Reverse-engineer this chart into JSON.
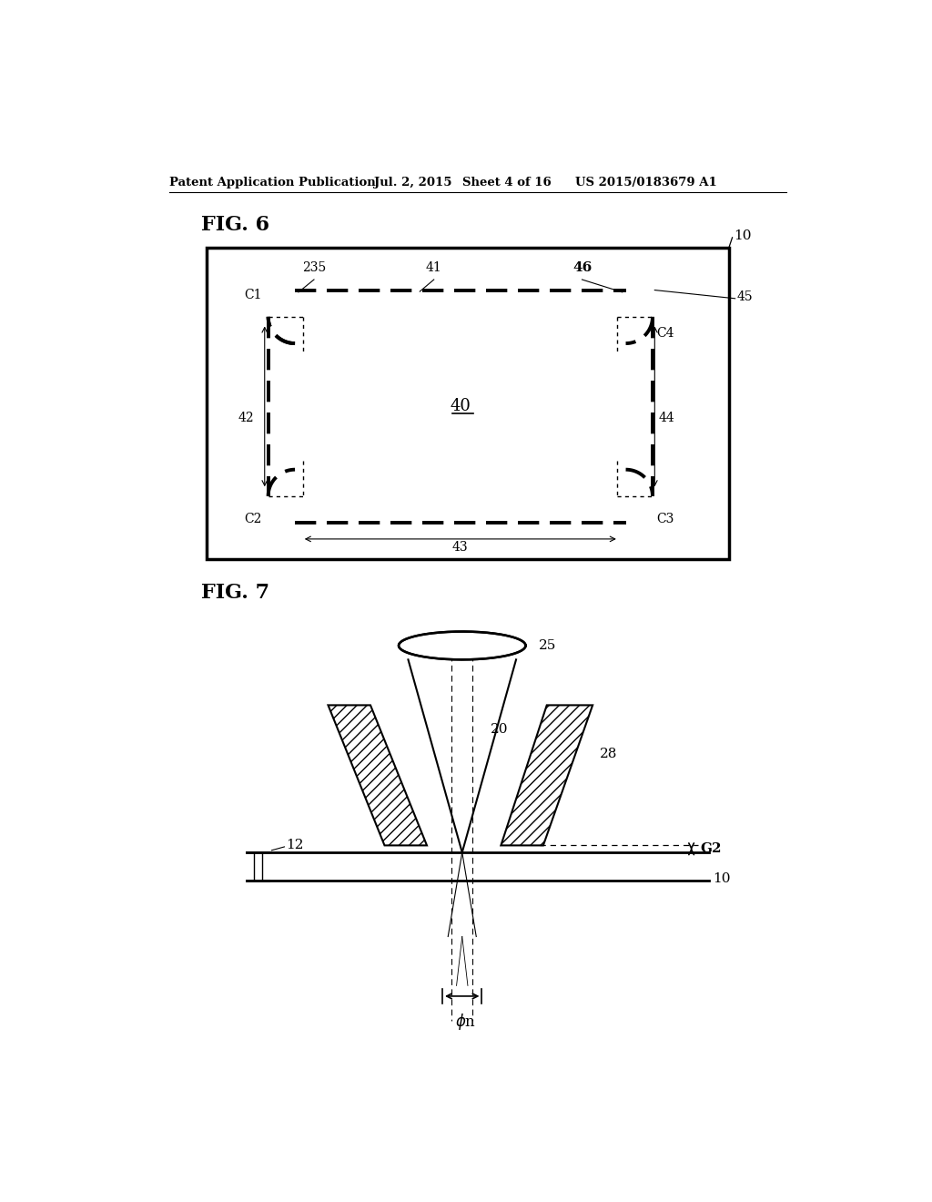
{
  "bg_color": "#ffffff",
  "header_text1": "Patent Application Publication",
  "header_text2": "Jul. 2, 2015",
  "header_text3": "Sheet 4 of 16",
  "header_text4": "US 2015/0183679 A1",
  "fig6_label": "FIG. 6",
  "fig7_label": "FIG. 7"
}
